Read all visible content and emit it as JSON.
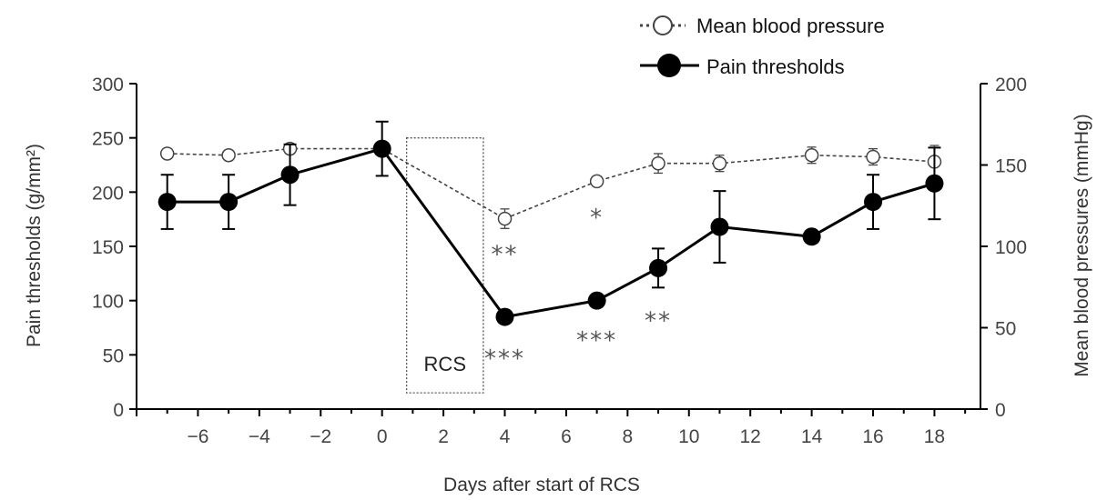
{
  "chart_data": {
    "type": "line",
    "xlabel": "Days after start of RCS",
    "ylabel_left": "Pain thresholds (g/mm²)",
    "ylabel_right": "Mean blood pressures (mmHg)",
    "xlim": [
      -8,
      19.5
    ],
    "xticks": [
      -6,
      -4,
      -2,
      0,
      2,
      4,
      6,
      8,
      10,
      12,
      14,
      16,
      18
    ],
    "xtick_labels": [
      "−6",
      "−4",
      "−2",
      "0",
      "2",
      "4",
      "6",
      "8",
      "10",
      "12",
      "14",
      "16",
      "18"
    ],
    "ylim_left": [
      0,
      300
    ],
    "yticks_left": [
      0,
      50,
      100,
      150,
      200,
      250,
      300
    ],
    "yticks_left_labels": [
      "0",
      "50",
      "100",
      "150",
      "200",
      "250",
      "300"
    ],
    "ylim_right": [
      0,
      200
    ],
    "yticks_right": [
      0,
      50,
      100,
      150,
      200
    ],
    "yticks_right_labels": [
      "0",
      "50",
      "100",
      "150",
      "200"
    ],
    "grid": false,
    "legend_position": "top-right",
    "series": [
      {
        "name": "Mean blood pressure",
        "axis": "right",
        "style": "dotted-open-circle",
        "color": "#444444",
        "x": [
          -7,
          -5,
          -3,
          0,
          4,
          7,
          9,
          11,
          14,
          16,
          18
        ],
        "y": [
          157,
          156,
          160,
          160,
          117,
          140,
          151,
          151,
          156,
          155,
          152
        ],
        "err": [
          3,
          3,
          3,
          3,
          6,
          3,
          6,
          5,
          5,
          5,
          10
        ]
      },
      {
        "name": "Pain thresholds",
        "axis": "left",
        "style": "solid-filled-circle",
        "color": "#000000",
        "x": [
          -7,
          -5,
          -3,
          0,
          4,
          7,
          9,
          11,
          14,
          16,
          18
        ],
        "y": [
          191,
          191,
          216,
          240,
          85,
          100,
          130,
          168,
          159,
          191,
          208
        ],
        "err": [
          25,
          25,
          28,
          25,
          0,
          0,
          18,
          33,
          0,
          25,
          33
        ]
      }
    ],
    "annotations": [
      {
        "text": "**",
        "x": 4,
        "y": 147,
        "axis": "left"
      },
      {
        "text": "*",
        "x": 7,
        "y": 181,
        "axis": "left"
      },
      {
        "text": "***",
        "x": 4,
        "y": 51,
        "axis": "left"
      },
      {
        "text": "***",
        "x": 7,
        "y": 68,
        "axis": "left"
      },
      {
        "text": "**",
        "x": 9,
        "y": 86,
        "axis": "left"
      }
    ],
    "rcs_box": {
      "label": "RCS",
      "x_start": 0.8,
      "x_end": 3.3,
      "y_top": 250,
      "y_bottom": 15
    }
  }
}
